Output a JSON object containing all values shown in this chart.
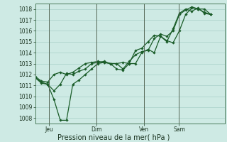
{
  "bg_color": "#ceeae4",
  "grid_color": "#a8cfc8",
  "line_color": "#1a5c28",
  "xlabel": "Pression niveau de la mer( hPa )",
  "ylim": [
    1007.5,
    1018.5
  ],
  "yticks": [
    1008,
    1009,
    1010,
    1011,
    1012,
    1013,
    1014,
    1015,
    1016,
    1017,
    1018
  ],
  "xtick_labels": [
    "Jeu",
    "Dim",
    "Ven",
    "Sam"
  ],
  "xtick_positions": [
    0.08,
    0.35,
    0.62,
    0.82
  ],
  "vline_positions": [
    0.08,
    0.35,
    0.62,
    0.82
  ],
  "series": [
    [
      1011.7,
      1011.2,
      1011.1,
      1009.7,
      1007.8,
      1007.8,
      1011.1,
      1011.5,
      1012.0,
      1012.5,
      1013.0,
      1013.1,
      1013.0,
      1012.5,
      1012.4,
      1013.0,
      1013.0,
      1014.0,
      1014.3,
      1014.0,
      1015.5,
      1015.1,
      1014.9,
      1016.0,
      1017.5,
      1018.1,
      1018.0,
      1018.0,
      1017.5
    ],
    [
      1011.7,
      1011.3,
      1011.1,
      1010.5,
      1011.1,
      1012.1,
      1012.0,
      1012.3,
      1012.5,
      1013.0,
      1013.1,
      1013.2,
      1013.0,
      1013.0,
      1012.5,
      1013.2,
      1013.8,
      1014.1,
      1014.2,
      1015.3,
      1015.7,
      1015.5,
      1016.0,
      1017.5,
      1017.9,
      1018.2,
      1018.0,
      1017.7,
      1017.5
    ],
    [
      1011.8,
      1011.4,
      1011.3,
      1012.0,
      1012.2,
      1012.0,
      1012.2,
      1012.6,
      1013.0,
      1013.1,
      1013.2,
      1013.1,
      1013.0,
      1013.0,
      1013.1,
      1013.0,
      1014.2,
      1014.4,
      1015.0,
      1015.6,
      1015.5,
      1015.0,
      1016.2,
      1017.6,
      1018.0,
      1017.8,
      1018.1,
      1017.6,
      1017.5
    ]
  ]
}
